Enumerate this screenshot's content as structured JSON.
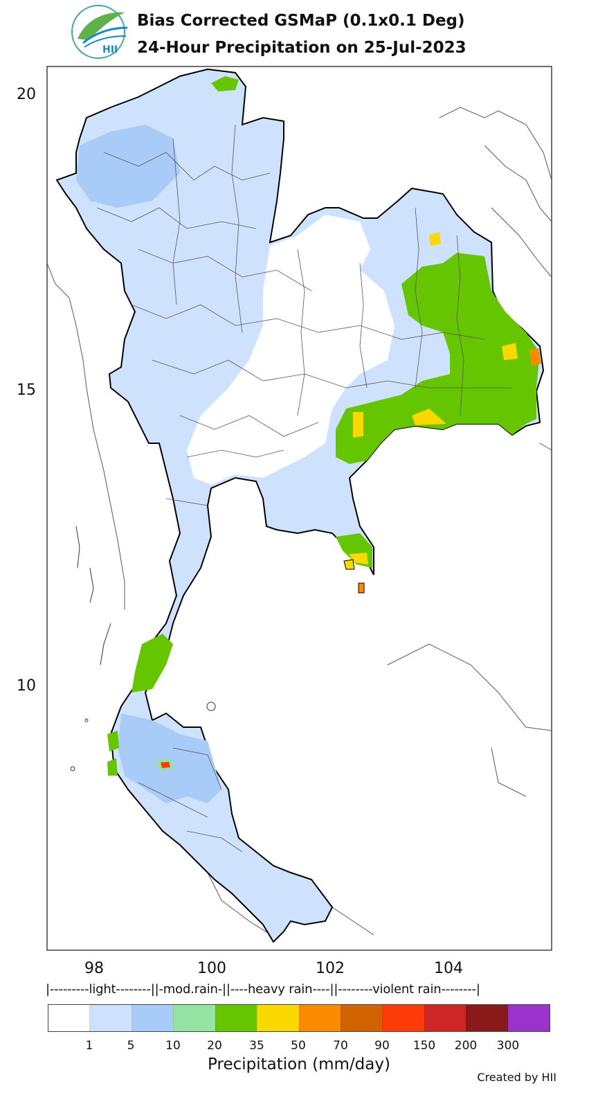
{
  "header": {
    "title_line1": "Bias Corrected GSMaP (0.1x0.1 Deg)",
    "title_line2": "24-Hour Precipitation on 25-Jul-2023",
    "logo_text": "HII"
  },
  "axes": {
    "y_ticks": [
      "20",
      "15",
      "10"
    ],
    "x_ticks": [
      "98",
      "100",
      "102",
      "104"
    ]
  },
  "legend": {
    "class_labels": "|---------light--------||-mod.rain-||----heavy rain----||--------violent rain--------|",
    "colors": [
      "#ffffff",
      "#cfe2fd",
      "#a8cbf8",
      "#96e4a4",
      "#64c500",
      "#fad800",
      "#fa8a00",
      "#d06200",
      "#fd3b0a",
      "#cd2727",
      "#8a1a1a",
      "#9933cc"
    ],
    "tick_labels": [
      "1",
      "5",
      "10",
      "20",
      "35",
      "50",
      "70",
      "90",
      "150",
      "200",
      "300"
    ],
    "title": "Precipitation (mm/day)"
  },
  "footer": {
    "credit": "Created by HII"
  }
}
